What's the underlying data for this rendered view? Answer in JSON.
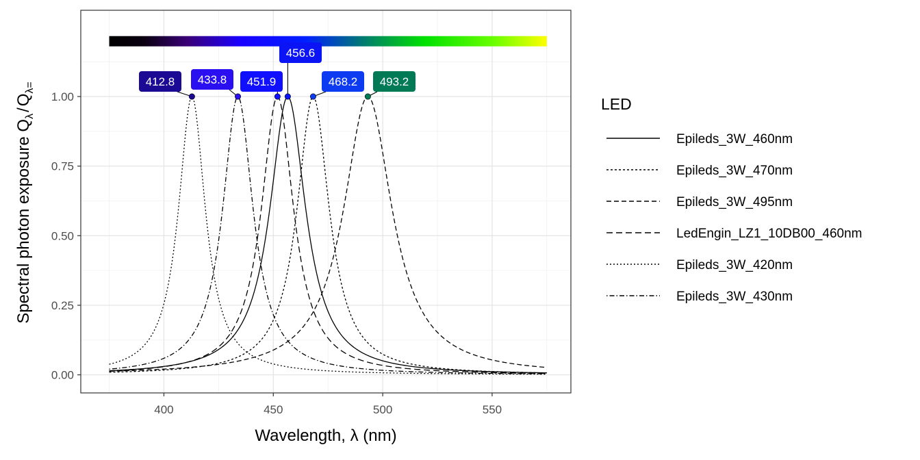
{
  "chart_data": {
    "type": "line",
    "xlabel": "Wavelength, λ (nm)",
    "ylabel": "Spectral photon exposure Q_λ / Q_λ=",
    "ylabel_parts": {
      "main": "Spectral  photon  exposure  Q",
      "sub1": "λ",
      "slash": "/",
      "q2": "Q",
      "sub2": "λ="
    },
    "xlim": [
      362,
      586
    ],
    "ylim": [
      -0.065,
      1.31
    ],
    "x_ticks": [
      400,
      450,
      500,
      550
    ],
    "x_tick_labels": [
      "400",
      "450",
      "500",
      "550"
    ],
    "y_ticks": [
      0,
      0.25,
      0.5,
      0.75,
      1.0
    ],
    "y_tick_labels": [
      "0.00",
      "0.25",
      "0.50",
      "0.75",
      "1.00"
    ],
    "grid": true,
    "x_range_data": [
      375,
      575
    ],
    "wavelength_bar": {
      "from": 375,
      "to": 575,
      "y": 1.2
    },
    "legend": {
      "title": "LED",
      "position": "right",
      "entries": [
        {
          "name": "Epileds_3W_460nm",
          "dash": "solid"
        },
        {
          "name": "Epileds_3W_470nm",
          "dash": "dotted"
        },
        {
          "name": "Epileds_3W_495nm",
          "dash": "dashed"
        },
        {
          "name": "LedEngin_LZ1_10DB00_460nm",
          "dash": "longdash"
        },
        {
          "name": "Epileds_3W_420nm",
          "dash": "dotted-fine"
        },
        {
          "name": "Epileds_3W_430nm",
          "dash": "dotdash"
        }
      ]
    },
    "series": [
      {
        "name": "Epileds_3W_460nm",
        "peak": 456.6,
        "width": 10.0,
        "dash": "solid"
      },
      {
        "name": "Epileds_3W_470nm",
        "peak": 468.2,
        "width": 9.0,
        "dash": "dotted"
      },
      {
        "name": "Epileds_3W_495nm",
        "peak": 493.2,
        "width": 13.5,
        "dash": "dashed"
      },
      {
        "name": "LedEngin_LZ1_10DB00_460nm",
        "peak": 451.9,
        "width": 9.0,
        "dash": "longdash"
      },
      {
        "name": "Epileds_3W_420nm",
        "peak": 412.8,
        "width": 7.5,
        "dash": "dotted-fine"
      },
      {
        "name": "Epileds_3W_430nm",
        "peak": 433.8,
        "width": 8.5,
        "dash": "dotdash"
      }
    ],
    "peaks": [
      {
        "label": "412.8",
        "x": 412.8,
        "y": 1.0,
        "color": "#1b0a94"
      },
      {
        "label": "433.8",
        "x": 433.8,
        "y": 1.0,
        "color": "#2a10f0"
      },
      {
        "label": "451.9",
        "x": 451.9,
        "y": 1.0,
        "color": "#1010ff"
      },
      {
        "label": "456.6",
        "x": 456.6,
        "y": 1.0,
        "color": "#0a14f5"
      },
      {
        "label": "468.2",
        "x": 468.2,
        "y": 1.0,
        "color": "#0d3bf2"
      },
      {
        "label": "493.2",
        "x": 493.2,
        "y": 1.0,
        "color": "#007a55"
      }
    ]
  }
}
